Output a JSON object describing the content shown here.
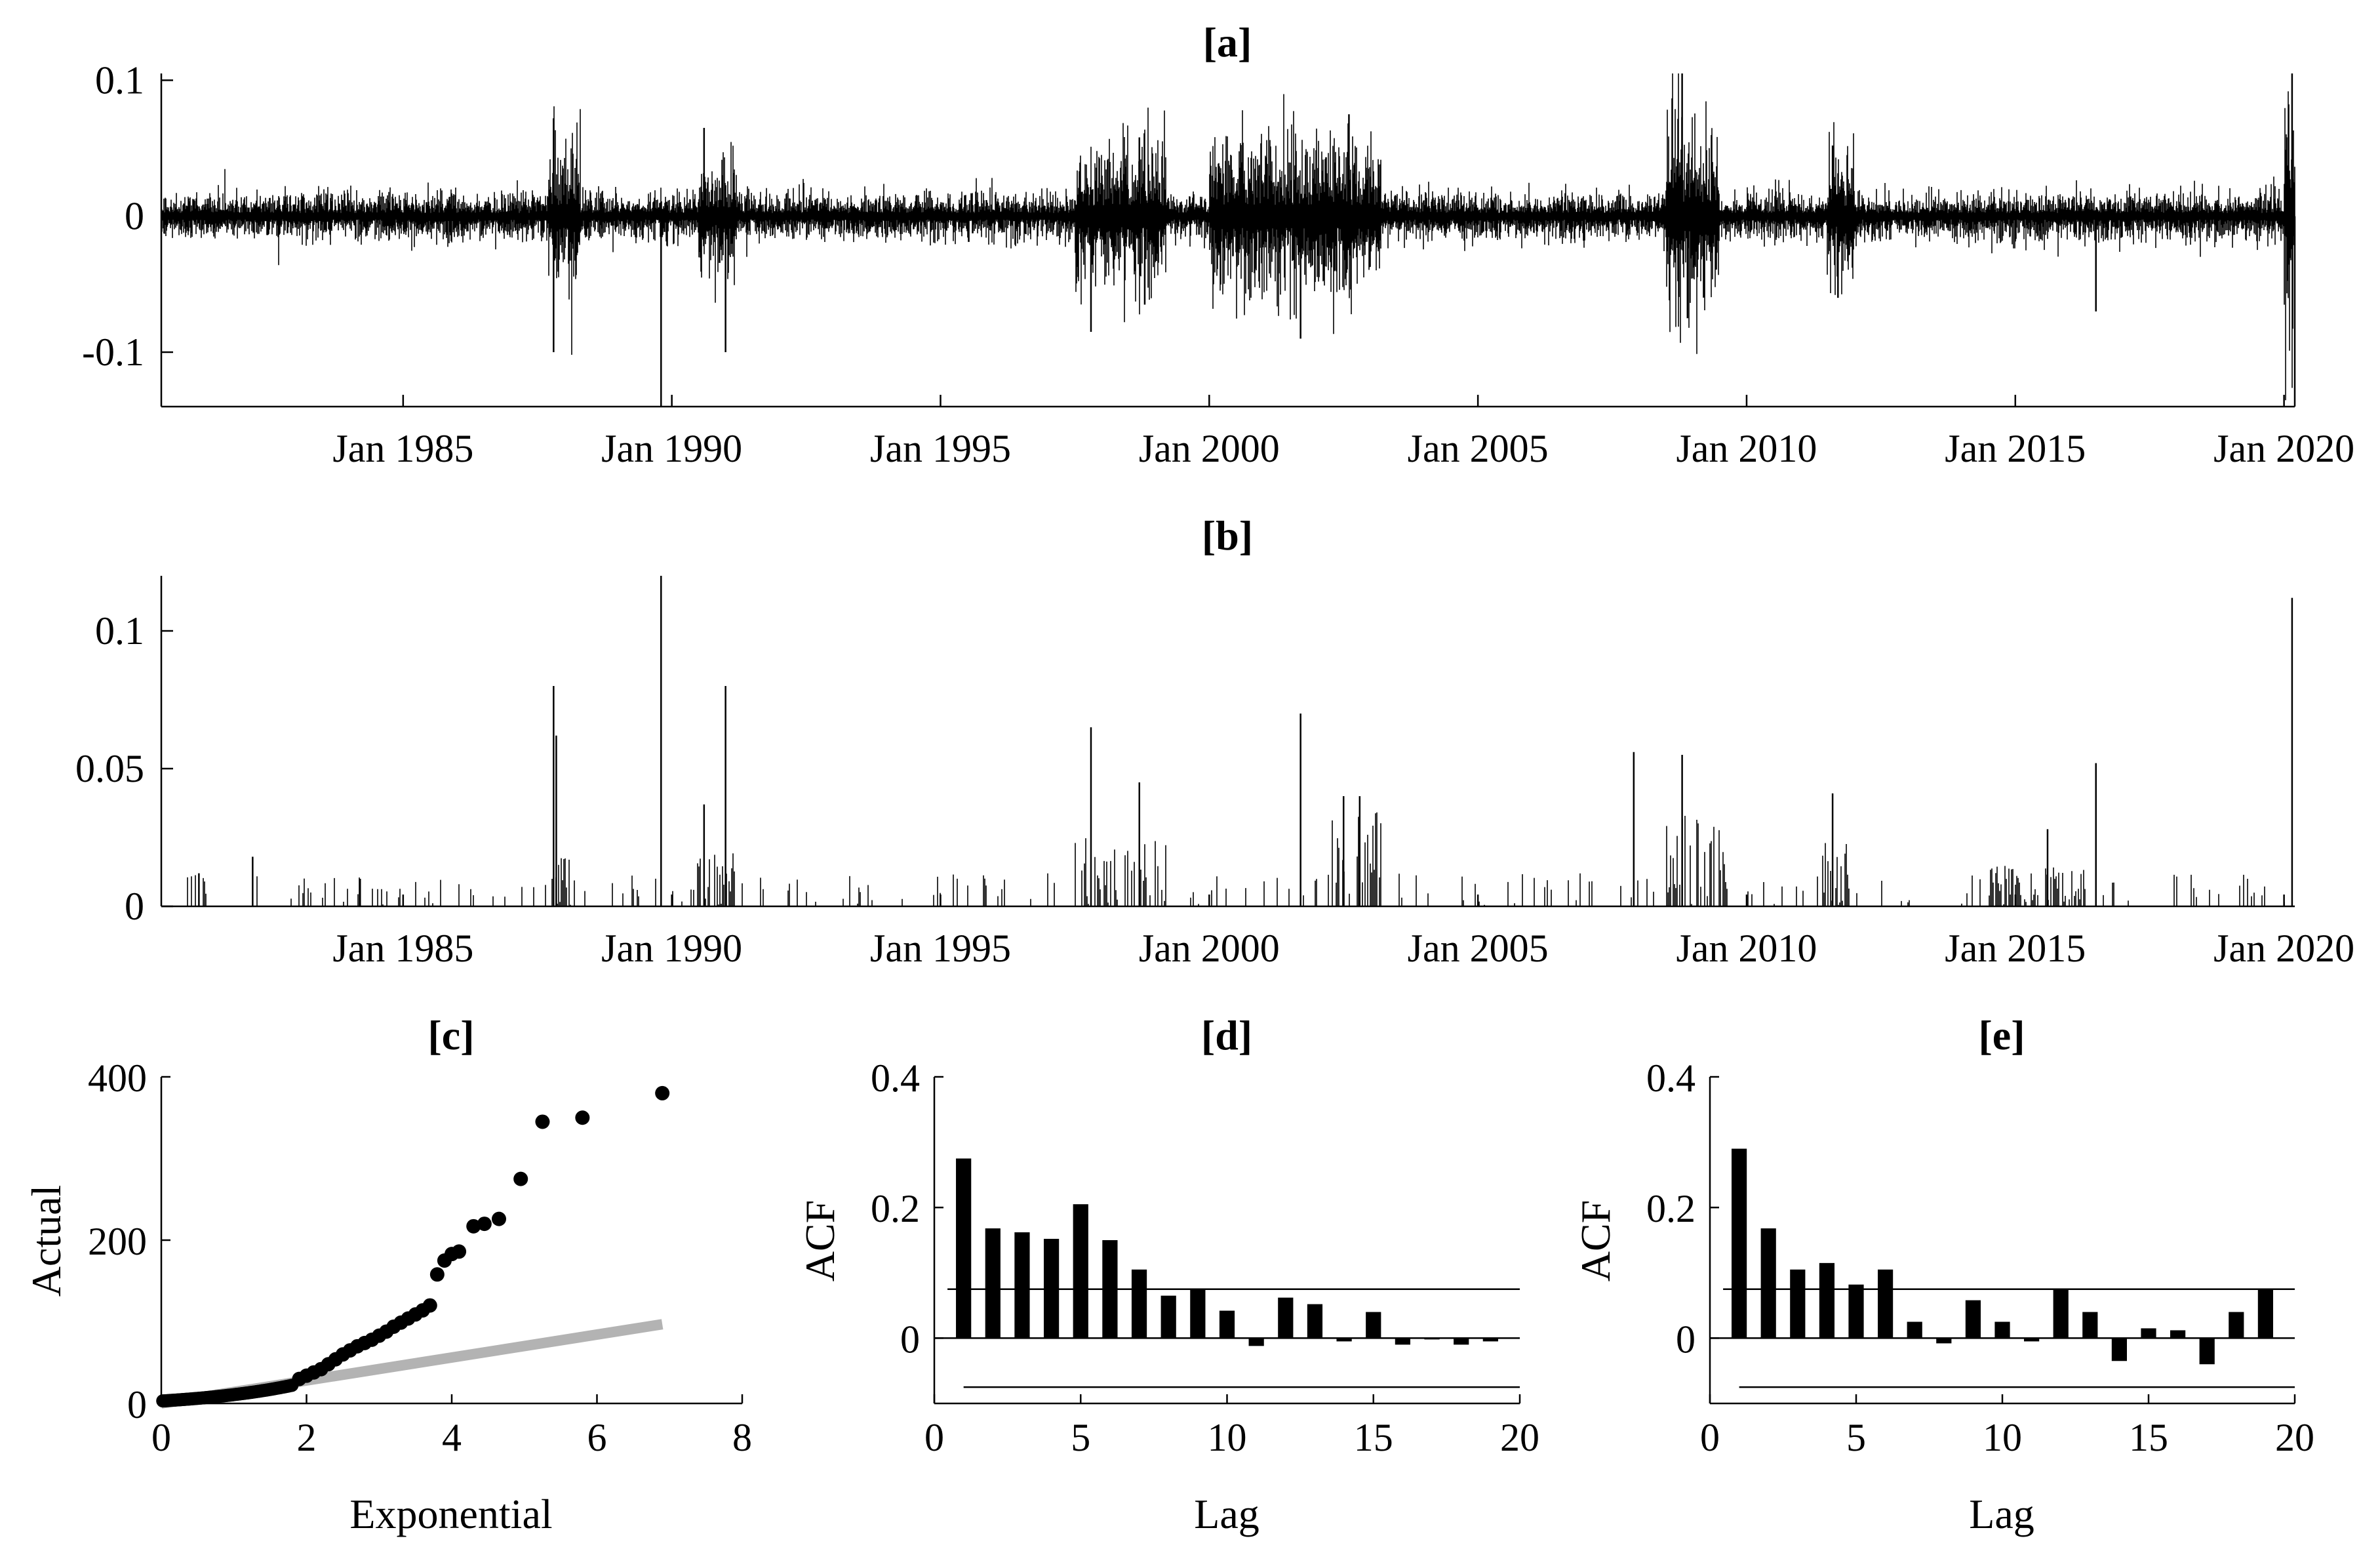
{
  "chart_data": [
    {
      "panel": "a",
      "type": "line",
      "title": "[a]",
      "xlabel": "",
      "ylabel": "",
      "x_range_years": [
        1980.5,
        2020.2
      ],
      "ylim": [
        -0.14,
        0.105
      ],
      "yticks": [
        0.1,
        0,
        -0.1
      ],
      "ytick_labels": [
        "0.1",
        "0",
        "-0.1"
      ],
      "xticks": [
        1985,
        1990,
        1995,
        2000,
        2005,
        2010,
        2015,
        2020
      ],
      "xtick_labels": [
        "Jan 1985",
        "Jan 1990",
        "Jan 1995",
        "Jan 2000",
        "Jan 2005",
        "Jan 2010",
        "Jan 2015",
        "Jan 2020"
      ],
      "series_description": "daily log returns",
      "spikes": [
        {
          "t": 1987.8,
          "v": 0.072
        },
        {
          "t": 1987.8,
          "v": -0.1
        },
        {
          "t": 1989.8,
          "v": -0.14
        },
        {
          "t": 1990.6,
          "v": 0.065
        },
        {
          "t": 1991.0,
          "v": -0.1
        },
        {
          "t": 1997.8,
          "v": -0.085
        },
        {
          "t": 1998.7,
          "v": 0.058
        },
        {
          "t": 1998.8,
          "v": -0.065
        },
        {
          "t": 2001.7,
          "v": -0.09
        },
        {
          "t": 2002.6,
          "v": 0.075
        },
        {
          "t": 2008.8,
          "v": 0.11
        },
        {
          "t": 2008.9,
          "v": -0.075
        },
        {
          "t": 2011.6,
          "v": 0.052
        },
        {
          "t": 2011.7,
          "v": -0.06
        },
        {
          "t": 2016.5,
          "v": -0.07
        },
        {
          "t": 2020.15,
          "v": 0.105
        },
        {
          "t": 2020.2,
          "v": -0.14
        }
      ],
      "volatility_clusters": [
        {
          "from": 1987.7,
          "to": 1988.3,
          "amp": 0.03
        },
        {
          "from": 1990.5,
          "to": 1991.2,
          "amp": 0.025
        },
        {
          "from": 1997.5,
          "to": 1999.2,
          "amp": 0.03
        },
        {
          "from": 2000.0,
          "to": 2003.2,
          "amp": 0.035
        },
        {
          "from": 2008.5,
          "to": 2009.5,
          "amp": 0.045
        },
        {
          "from": 2011.5,
          "to": 2012.0,
          "amp": 0.03
        },
        {
          "from": 2020.0,
          "to": 2020.2,
          "amp": 0.06
        }
      ]
    },
    {
      "panel": "b",
      "type": "bar",
      "title": "[b]",
      "xlabel": "",
      "ylabel": "",
      "x_range_years": [
        1980.5,
        2020.2
      ],
      "ylim": [
        0,
        0.12
      ],
      "yticks": [
        0.1,
        0.05,
        0
      ],
      "ytick_labels": [
        "0.1",
        "0.05",
        "0"
      ],
      "xticks": [
        1985,
        1990,
        1995,
        2000,
        2005,
        2010,
        2015,
        2020
      ],
      "xtick_labels": [
        "Jan 1985",
        "Jan 1990",
        "Jan 1995",
        "Jan 2000",
        "Jan 2005",
        "Jan 2010",
        "Jan 2015",
        "Jan 2020"
      ],
      "series_description": "exceedances above threshold",
      "spikes": [
        {
          "t": 1981.2,
          "v": 0.012
        },
        {
          "t": 1982.2,
          "v": 0.018
        },
        {
          "t": 1984.2,
          "v": 0.01
        },
        {
          "t": 1987.8,
          "v": 0.08
        },
        {
          "t": 1987.85,
          "v": 0.062
        },
        {
          "t": 1989.8,
          "v": 0.12
        },
        {
          "t": 1990.6,
          "v": 0.037
        },
        {
          "t": 1991.0,
          "v": 0.08
        },
        {
          "t": 1997.8,
          "v": 0.065
        },
        {
          "t": 1998.7,
          "v": 0.045
        },
        {
          "t": 2001.7,
          "v": 0.07
        },
        {
          "t": 2002.5,
          "v": 0.04
        },
        {
          "t": 2002.8,
          "v": 0.04
        },
        {
          "t": 2007.9,
          "v": 0.056
        },
        {
          "t": 2008.8,
          "v": 0.055
        },
        {
          "t": 2011.6,
          "v": 0.041
        },
        {
          "t": 2015.6,
          "v": 0.028
        },
        {
          "t": 2016.5,
          "v": 0.052
        },
        {
          "t": 2020.15,
          "v": 0.112
        }
      ],
      "clusters": [
        {
          "from": 1987.7,
          "to": 1988.2,
          "amp": 0.02
        },
        {
          "from": 1990.4,
          "to": 1991.2,
          "amp": 0.02
        },
        {
          "from": 1997.5,
          "to": 1999.2,
          "amp": 0.025
        },
        {
          "from": 2002.2,
          "to": 2003.2,
          "amp": 0.035
        },
        {
          "from": 2008.5,
          "to": 2009.6,
          "amp": 0.035
        },
        {
          "from": 2011.4,
          "to": 2012.0,
          "amp": 0.03
        },
        {
          "from": 2014.5,
          "to": 2016.3,
          "amp": 0.015
        }
      ]
    },
    {
      "panel": "c",
      "type": "scatter",
      "title": "[c]",
      "xlabel": "Exponential",
      "ylabel": "Actual",
      "xlim": [
        0,
        8
      ],
      "ylim": [
        0,
        400
      ],
      "xticks": [
        0,
        2,
        4,
        6,
        8
      ],
      "yticks": [
        0,
        200,
        400
      ],
      "reference_line": {
        "x": [
          0,
          6.9
        ],
        "y": [
          0,
          97
        ]
      },
      "tail_points": [
        {
          "x": 1.9,
          "y": 30
        },
        {
          "x": 2.0,
          "y": 34
        },
        {
          "x": 2.1,
          "y": 38
        },
        {
          "x": 2.2,
          "y": 42
        },
        {
          "x": 2.3,
          "y": 48
        },
        {
          "x": 2.4,
          "y": 54
        },
        {
          "x": 2.5,
          "y": 60
        },
        {
          "x": 2.6,
          "y": 65
        },
        {
          "x": 2.7,
          "y": 70
        },
        {
          "x": 2.8,
          "y": 74
        },
        {
          "x": 2.9,
          "y": 78
        },
        {
          "x": 3.0,
          "y": 83
        },
        {
          "x": 3.1,
          "y": 88
        },
        {
          "x": 3.2,
          "y": 94
        },
        {
          "x": 3.3,
          "y": 99
        },
        {
          "x": 3.4,
          "y": 104
        },
        {
          "x": 3.5,
          "y": 109
        },
        {
          "x": 3.6,
          "y": 114
        },
        {
          "x": 3.7,
          "y": 120
        },
        {
          "x": 3.8,
          "y": 158
        },
        {
          "x": 3.9,
          "y": 175
        },
        {
          "x": 4.0,
          "y": 183
        },
        {
          "x": 4.1,
          "y": 186
        },
        {
          "x": 4.3,
          "y": 217
        },
        {
          "x": 4.45,
          "y": 220
        },
        {
          "x": 4.65,
          "y": 226
        },
        {
          "x": 4.95,
          "y": 275
        },
        {
          "x": 5.25,
          "y": 345
        },
        {
          "x": 5.8,
          "y": 350
        },
        {
          "x": 6.9,
          "y": 380
        }
      ]
    },
    {
      "panel": "d",
      "type": "bar",
      "title": "[d]",
      "xlabel": "Lag",
      "ylabel": "ACF",
      "xlim": [
        0,
        20
      ],
      "ylim": [
        -0.1,
        0.4
      ],
      "xticks": [
        0,
        5,
        10,
        15,
        20
      ],
      "yticks": [
        0,
        0.2,
        0.4
      ],
      "lags": [
        1,
        2,
        3,
        4,
        5,
        6,
        7,
        8,
        9,
        10,
        11,
        12,
        13,
        14,
        15,
        16,
        17,
        18,
        19
      ],
      "values": [
        0.275,
        0.168,
        0.162,
        0.152,
        0.205,
        0.15,
        0.105,
        0.065,
        0.075,
        0.042,
        -0.012,
        0.062,
        0.052,
        -0.005,
        0.04,
        -0.01,
        0.0,
        -0.01,
        -0.005
      ],
      "confidence_bounds": [
        0.075,
        -0.075
      ]
    },
    {
      "panel": "e",
      "type": "bar",
      "title": "[e]",
      "xlabel": "Lag",
      "ylabel": "ACF",
      "xlim": [
        0,
        20
      ],
      "ylim": [
        -0.1,
        0.4
      ],
      "xticks": [
        0,
        5,
        10,
        15,
        20
      ],
      "yticks": [
        0,
        0.2,
        0.4
      ],
      "lags": [
        1,
        2,
        3,
        4,
        5,
        6,
        7,
        8,
        9,
        10,
        11,
        12,
        13,
        14,
        15,
        16,
        17,
        18,
        19
      ],
      "values": [
        0.29,
        0.168,
        0.105,
        0.115,
        0.082,
        0.105,
        0.025,
        -0.008,
        0.058,
        0.025,
        -0.005,
        0.075,
        0.04,
        -0.035,
        0.015,
        0.012,
        -0.04,
        0.04,
        0.075
      ],
      "confidence_bounds": [
        0.075,
        -0.075
      ]
    }
  ]
}
